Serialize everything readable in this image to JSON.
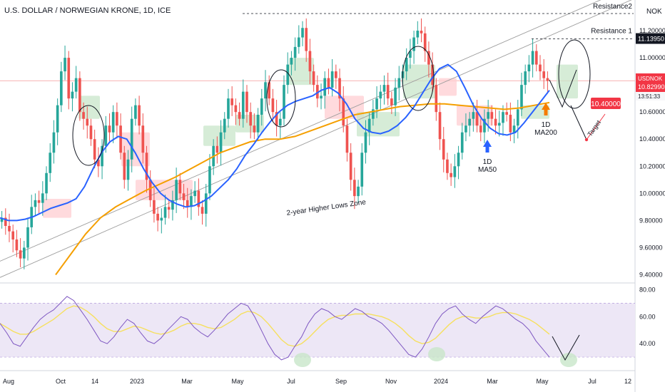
{
  "header": {
    "symbol_title": "U.S. DOLLAR / NORWEGIAN KRONE, 1D, ICE"
  },
  "currency": "NOK",
  "colors": {
    "up": "#26a69a",
    "down": "#ef5350",
    "ma50": "#2962ff",
    "ma200": "#f59f00",
    "cloud_green": "#c8e6c9",
    "cloud_red": "#ffcdd2",
    "rsi": "#7e57c2",
    "rsi_ma": "#f6e05e",
    "rsi_band": "#ede7f6",
    "badge_red": "#f23645",
    "trend": "#9e9e9e",
    "arrow_blue": "#2962ff",
    "arrow_orange": "#f57c00"
  },
  "icons": {
    "ma50_marker": "arrow-up-icon",
    "ma200_marker": "arrow-up-icon"
  },
  "chart_data": [
    {
      "type": "candlestick",
      "ylim": [
        9.35,
        11.3
      ],
      "price_ticks": [
        "11.20000",
        "11.00000",
        "10.80000",
        "10.60000",
        "10.40000",
        "10.20000",
        "10.00000",
        "9.80000",
        "9.60000",
        "9.40000"
      ],
      "time_ticks": [
        "Aug",
        "Oct",
        "14",
        "2023",
        "Mar",
        "May",
        "Jul",
        "Sep",
        "Nov",
        "2024",
        "Mar",
        "May",
        "Jul",
        "12"
      ],
      "series": [
        {
          "name": "USDNOK",
          "last": "10.82990",
          "countdown": "13:51:33"
        },
        {
          "name": "1D MA50"
        },
        {
          "name": "1D MA200"
        }
      ],
      "levels": [
        {
          "label": "Resistance2",
          "value": 11.26
        },
        {
          "label": "Resistance 1",
          "value": 11.1395,
          "badge": "11.13950"
        }
      ],
      "target": {
        "label": "Target",
        "value": 10.4,
        "badge": "10.40000"
      },
      "annotations": {
        "trend_zone": "2-year Higher Lows Zone",
        "ma50_label": [
          "1D",
          "MA50"
        ],
        "ma200_label": [
          "1D",
          "MA200"
        ]
      },
      "trendlines": [
        {
          "x": [
            "Aug",
            "Jul"
          ],
          "y": [
            9.5,
            10.45
          ]
        },
        {
          "x": [
            "Aug",
            "Jul"
          ],
          "y": [
            9.38,
            10.34
          ]
        }
      ],
      "closes": [
        9.82,
        9.76,
        9.72,
        9.66,
        9.58,
        9.52,
        9.6,
        9.75,
        9.9,
        9.95,
        9.93,
        10.0,
        10.15,
        10.3,
        10.45,
        10.65,
        10.9,
        11.0,
        10.7,
        10.75,
        10.85,
        10.6,
        10.55,
        10.5,
        10.4,
        10.25,
        10.2,
        10.35,
        10.5,
        10.45,
        10.6,
        10.5,
        10.3,
        10.1,
        10.25,
        10.55,
        10.65,
        10.5,
        10.3,
        10.1,
        9.95,
        9.85,
        9.8,
        9.82,
        9.9,
        9.88,
        9.95,
        10.1,
        10.0,
        9.95,
        9.9,
        9.98,
        10.02,
        9.9,
        9.85,
        10.0,
        10.2,
        10.35,
        10.3,
        10.45,
        10.55,
        10.7,
        10.65,
        10.6,
        10.55,
        10.75,
        10.6,
        10.5,
        10.45,
        10.58,
        10.7,
        10.82,
        10.7,
        10.6,
        10.5,
        10.55,
        10.8,
        10.95,
        11.0,
        11.08,
        11.15,
        11.22,
        11.05,
        10.9,
        10.8,
        10.7,
        10.72,
        10.85,
        10.78,
        10.9,
        10.85,
        10.7,
        10.5,
        10.3,
        10.1,
        9.98,
        10.05,
        10.3,
        10.45,
        10.55,
        10.62,
        10.7,
        10.75,
        10.8,
        10.7,
        10.65,
        10.78,
        10.85,
        10.9,
        11.0,
        11.05,
        11.15,
        11.2,
        11.18,
        11.05,
        10.95,
        10.8,
        10.6,
        10.4,
        10.25,
        10.15,
        10.12,
        10.2,
        10.3,
        10.45,
        10.5,
        10.55,
        10.6,
        10.5,
        10.45,
        10.55,
        10.6,
        10.55,
        10.5,
        10.52,
        10.6,
        10.58,
        10.45,
        10.5,
        10.62,
        10.8,
        10.9,
        10.95,
        11.05,
        10.95,
        10.9,
        10.85,
        10.83
      ],
      "ma50": [
        9.82,
        9.8,
        9.8,
        9.81,
        9.83,
        9.86,
        9.89,
        9.91,
        9.93,
        9.96,
        10.05,
        10.18,
        10.3,
        10.38,
        10.42,
        10.4,
        10.3,
        10.18,
        10.08,
        10.0,
        9.95,
        9.92,
        9.9,
        9.91,
        9.94,
        9.98,
        10.04,
        10.1,
        10.18,
        10.28,
        10.36,
        10.45,
        10.53,
        10.6,
        10.65,
        10.68,
        10.7,
        10.72,
        10.76,
        10.78,
        10.74,
        10.66,
        10.55,
        10.48,
        10.45,
        10.44,
        10.46,
        10.5,
        10.56,
        10.64,
        10.74,
        10.84,
        10.92,
        10.95,
        10.9,
        10.78,
        10.65,
        10.55,
        10.48,
        10.44,
        10.43,
        10.45,
        10.52,
        10.6,
        10.68,
        10.76
      ],
      "ma200": [
        9.4,
        9.55,
        9.7,
        9.82,
        9.9,
        9.96,
        10.02,
        10.07,
        10.12,
        10.18,
        10.24,
        10.3,
        10.34,
        10.38,
        10.4,
        10.4,
        10.42,
        10.46,
        10.5,
        10.54,
        10.58,
        10.6,
        10.62,
        10.64,
        10.65,
        10.66,
        10.66,
        10.65,
        10.64,
        10.63,
        10.62,
        10.63,
        10.65,
        10.67
      ],
      "rsi": {
        "ylim": [
          20,
          85
        ],
        "ticks": [
          "80.00",
          "60.00",
          "40.00"
        ],
        "band": [
          30,
          70
        ],
        "values": [
          55,
          48,
          40,
          38,
          45,
          52,
          58,
          62,
          65,
          70,
          75,
          72,
          65,
          58,
          50,
          42,
          40,
          45,
          52,
          58,
          55,
          48,
          42,
          40,
          44,
          50,
          55,
          60,
          58,
          52,
          48,
          45,
          50,
          56,
          62,
          66,
          70,
          68,
          60,
          50,
          40,
          32,
          28,
          30,
          38,
          45,
          55,
          62,
          66,
          64,
          60,
          58,
          62,
          66,
          64,
          60,
          58,
          55,
          50,
          44,
          38,
          32,
          30,
          36,
          45,
          55,
          62,
          66,
          68,
          62,
          58,
          55,
          60,
          64,
          68,
          66,
          62,
          58,
          55,
          50,
          42,
          36,
          30
        ],
        "ma": [
          55,
          52,
          49,
          47,
          47,
          49,
          52,
          55,
          58,
          62,
          66,
          68,
          67,
          64,
          60,
          55,
          51,
          49,
          49,
          51,
          53,
          52,
          50,
          48,
          47,
          48,
          50,
          53,
          55,
          55,
          54,
          52,
          51,
          52,
          55,
          58,
          62,
          64,
          63,
          60,
          55,
          49,
          43,
          39,
          38,
          40,
          44,
          49,
          54,
          58,
          60,
          61,
          61,
          62,
          62,
          62,
          61,
          60,
          58,
          55,
          51,
          46,
          42,
          40,
          41,
          44,
          49,
          54,
          58,
          60,
          60,
          59,
          59,
          60,
          62,
          63,
          63,
          62,
          60,
          58,
          55,
          51,
          47
        ]
      }
    }
  ]
}
